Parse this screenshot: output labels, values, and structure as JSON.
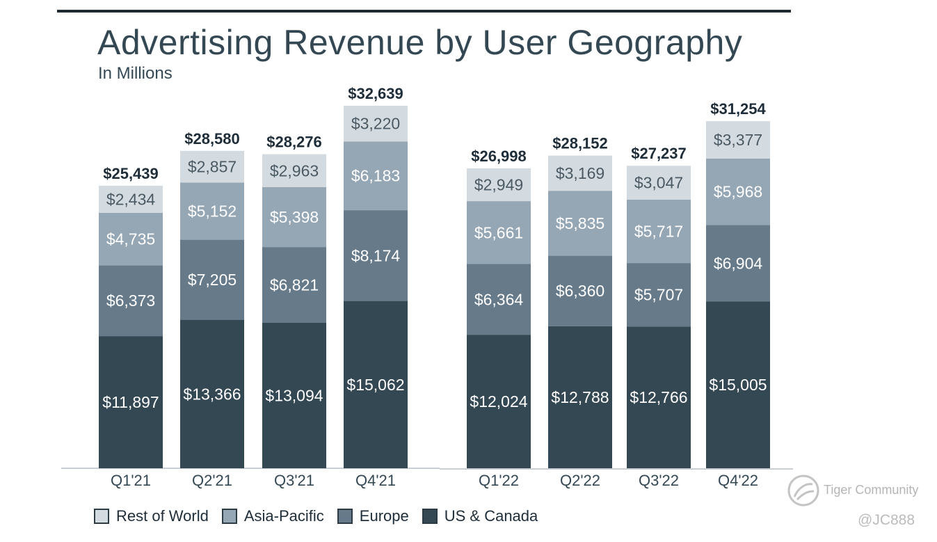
{
  "chart_data": {
    "type": "bar",
    "stacked": true,
    "title": "Advertising Revenue by User Geography",
    "subtitle": "In Millions",
    "categories": [
      "Q1'21",
      "Q2'21",
      "Q3'21",
      "Q4'21",
      "Q1'22",
      "Q2'22",
      "Q3'22",
      "Q4'22"
    ],
    "series": [
      {
        "name": "US & Canada",
        "color": "#344854",
        "text_color": "#ffffff",
        "values": [
          11897,
          13366,
          13094,
          15062,
          12024,
          12788,
          12766,
          15005
        ],
        "labels": [
          "$11,897",
          "$13,366",
          "$13,094",
          "$15,062",
          "$12,024",
          "$12,788",
          "$12,766",
          "$15,005"
        ]
      },
      {
        "name": "Europe",
        "color": "#667a8a",
        "text_color": "#ffffff",
        "values": [
          6373,
          7205,
          6821,
          8174,
          6364,
          6360,
          5707,
          6904
        ],
        "labels": [
          "$6,373",
          "$7,205",
          "$6,821",
          "$8,174",
          "$6,364",
          "$6,360",
          "$5,707",
          "$6,904"
        ]
      },
      {
        "name": "Asia-Pacific",
        "color": "#95a6b4",
        "text_color": "#ffffff",
        "values": [
          4735,
          5152,
          5398,
          6183,
          5661,
          5835,
          5717,
          5968
        ],
        "labels": [
          "$4,735",
          "$5,152",
          "$5,398",
          "$6,183",
          "$5,661",
          "$5,835",
          "$5,717",
          "$5,968"
        ]
      },
      {
        "name": "Rest of World",
        "color": "#d4dbe0",
        "text_color": "#4a5963",
        "values": [
          2434,
          2857,
          2963,
          3220,
          2949,
          3169,
          3047,
          3377
        ],
        "labels": [
          "$2,434",
          "$2,857",
          "$2,963",
          "$3,220",
          "$2,949",
          "$3,169",
          "$3,047",
          "$3,377"
        ]
      }
    ],
    "totals": [
      25439,
      28580,
      28276,
      32639,
      26998,
      28152,
      27237,
      31254
    ],
    "total_labels": [
      "$25,439",
      "$28,580",
      "$28,276",
      "$32,639",
      "$26,998",
      "$28,152",
      "$27,237",
      "$31,254"
    ],
    "ylim": [
      0,
      34000
    ],
    "xlabel": "",
    "ylabel": "",
    "grid": false,
    "legend": {
      "position": "bottom-left",
      "order": [
        "Rest of World",
        "Asia-Pacific",
        "Europe",
        "US & Canada"
      ]
    }
  },
  "watermark": {
    "text": "Tiger Community",
    "handle": "@JC888",
    "icon": "tiger-logo-icon"
  }
}
